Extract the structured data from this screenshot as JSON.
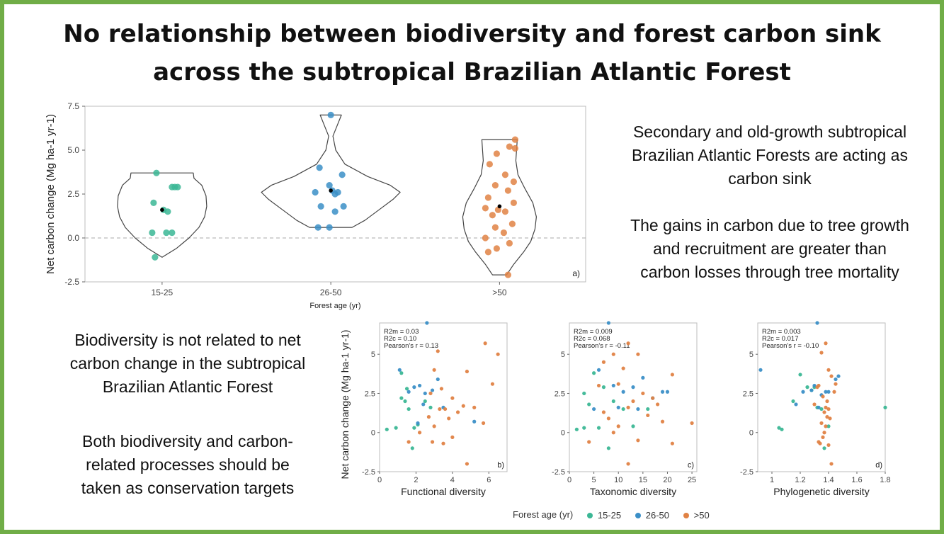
{
  "title": {
    "line1": "No relationship between biodiversity and forest carbon sink",
    "line2": "across the subtropical Brazilian Atlantic Forest"
  },
  "right_text": {
    "p1": [
      "Secondary and old-growth subtropical",
      "Brazilian Atlantic Forests are acting as",
      "carbon sink"
    ],
    "p2": [
      "The gains in carbon due to tree growth",
      "and recruitment are greater than",
      "carbon losses through tree mortality"
    ]
  },
  "left_text": {
    "p1": [
      "Biodiversity is not related to net",
      "carbon change in the subtropical",
      "Brazilian Atlantic Forest"
    ],
    "p2": [
      "Both biodiversity and carbon-",
      "related processes should be",
      "taken as conservation targets"
    ]
  },
  "colors": {
    "15-25": "#3bb795",
    "26-50": "#3b8fc7",
    ">50": "#e08244",
    "frame": "#70ad47"
  },
  "legend": {
    "title": "Forest age (yr)",
    "items": [
      "15-25",
      "26-50",
      ">50"
    ]
  },
  "chart_data": [
    {
      "type": "violin",
      "panel": "a)",
      "xlabel": "Forest age (yr)",
      "ylabel": "Net carbon change (Mg ha-1 yr-1)",
      "ylim": [
        -2.5,
        7.5
      ],
      "yticks": [
        "-2.5",
        "0.0",
        "2.5",
        "5.0",
        "7.5"
      ],
      "categories": [
        "15-25",
        "26-50",
        ">50"
      ],
      "reference_line": 0,
      "groups": [
        {
          "name": "15-25",
          "mean": 1.6,
          "range": [
            -1.1,
            3.7
          ],
          "points": [
            3.7,
            2.9,
            2.9,
            2.9,
            2.0,
            1.6,
            1.5,
            0.3,
            0.3,
            0.3,
            -1.1
          ]
        },
        {
          "name": "26-50",
          "mean": 2.7,
          "range": [
            0.6,
            7.0
          ],
          "points": [
            7.0,
            4.0,
            3.6,
            3.0,
            2.6,
            2.6,
            2.7,
            2.5,
            1.8,
            1.8,
            1.5,
            0.6,
            0.6
          ]
        },
        {
          "name": ">50",
          "mean": 1.8,
          "range": [
            -2.1,
            5.6
          ],
          "points": [
            5.6,
            5.2,
            5.1,
            4.8,
            4.2,
            3.6,
            3.2,
            3.0,
            2.7,
            2.3,
            2.0,
            1.7,
            1.6,
            1.5,
            1.3,
            0.8,
            0.6,
            0.3,
            0.0,
            -0.3,
            -0.6,
            -0.8,
            -2.1
          ]
        }
      ]
    },
    {
      "type": "scatter",
      "panel": "b)",
      "xlabel": "Functional diversity",
      "ylabel": "Net carbon change (Mg ha-1 yr-1)",
      "xlim": [
        0,
        7
      ],
      "ylim": [
        -2.5,
        7
      ],
      "xticks": [
        0,
        2,
        4,
        6
      ],
      "yticks": [
        -2.5,
        0,
        2.5,
        5
      ],
      "stats": [
        "R2m = 0.03",
        "R2c = 0.10",
        "Pearson's r = 0.13"
      ],
      "series": [
        {
          "name": "15-25",
          "points": [
            [
              0.4,
              0.2
            ],
            [
              0.9,
              0.3
            ],
            [
              1.2,
              3.8
            ],
            [
              1.5,
              2.8
            ],
            [
              1.4,
              2.0
            ],
            [
              1.6,
              1.5
            ],
            [
              1.9,
              0.3
            ],
            [
              2.5,
              2.0
            ],
            [
              1.8,
              -1.0
            ],
            [
              2.1,
              0.5
            ],
            [
              2.8,
              1.6
            ],
            [
              1.2,
              2.2
            ]
          ]
        },
        {
          "name": "26-50",
          "points": [
            [
              2.6,
              7.0
            ],
            [
              1.1,
              4.0
            ],
            [
              2.2,
              3.0
            ],
            [
              2.9,
              2.7
            ],
            [
              2.5,
              2.5
            ],
            [
              3.2,
              3.4
            ],
            [
              3.5,
              1.6
            ],
            [
              1.6,
              2.6
            ],
            [
              1.9,
              2.9
            ],
            [
              5.2,
              0.7
            ],
            [
              2.1,
              0.6
            ],
            [
              2.4,
              1.8
            ]
          ]
        },
        {
          "name": ">50",
          "points": [
            [
              5.8,
              5.7
            ],
            [
              6.5,
              5.0
            ],
            [
              3.2,
              5.2
            ],
            [
              4.8,
              3.9
            ],
            [
              6.2,
              3.1
            ],
            [
              3.0,
              4.0
            ],
            [
              4.0,
              2.2
            ],
            [
              2.8,
              2.5
            ],
            [
              3.6,
              1.5
            ],
            [
              4.6,
              1.7
            ],
            [
              3.3,
              1.5
            ],
            [
              5.2,
              1.6
            ],
            [
              4.3,
              1.3
            ],
            [
              2.7,
              1.0
            ],
            [
              3.8,
              0.9
            ],
            [
              5.7,
              0.6
            ],
            [
              3.0,
              0.4
            ],
            [
              2.9,
              -0.6
            ],
            [
              3.5,
              -0.7
            ],
            [
              4.0,
              -0.3
            ],
            [
              4.8,
              -2.0
            ],
            [
              1.6,
              -0.6
            ],
            [
              3.4,
              2.8
            ],
            [
              2.2,
              0.0
            ]
          ]
        }
      ]
    },
    {
      "type": "scatter",
      "panel": "c)",
      "xlabel": "Taxonomic diversity",
      "ylabel": "",
      "xlim": [
        0,
        26
      ],
      "ylim": [
        -2.5,
        7
      ],
      "xticks": [
        0,
        5,
        10,
        15,
        20,
        25
      ],
      "yticks": [
        -2.5,
        0,
        2.5,
        5
      ],
      "stats": [
        "R2m = 0.009",
        "R2c = 0.068",
        "Pearson's r = -0.11"
      ],
      "series": [
        {
          "name": "15-25",
          "points": [
            [
              1.5,
              0.2
            ],
            [
              3,
              0.3
            ],
            [
              5,
              3.8
            ],
            [
              7,
              2.9
            ],
            [
              9,
              2.0
            ],
            [
              11,
              1.5
            ],
            [
              4,
              1.8
            ],
            [
              8,
              -1.0
            ],
            [
              6,
              0.3
            ],
            [
              13,
              0.4
            ],
            [
              16,
              1.5
            ],
            [
              3,
              2.5
            ]
          ]
        },
        {
          "name": "26-50",
          "points": [
            [
              8,
              7.0
            ],
            [
              6,
              4.0
            ],
            [
              9,
              3.0
            ],
            [
              11,
              2.6
            ],
            [
              13,
              2.9
            ],
            [
              15,
              3.5
            ],
            [
              17,
              2.2
            ],
            [
              19,
              2.6
            ],
            [
              5,
              1.5
            ],
            [
              10,
              1.6
            ],
            [
              14,
              1.5
            ],
            [
              20,
              2.6
            ]
          ]
        },
        {
          "name": ">50",
          "points": [
            [
              12,
              5.7
            ],
            [
              9,
              5.0
            ],
            [
              14,
              5.0
            ],
            [
              7,
              4.5
            ],
            [
              11,
              4.1
            ],
            [
              21,
              3.7
            ],
            [
              6,
              3.0
            ],
            [
              10,
              3.1
            ],
            [
              15,
              2.5
            ],
            [
              13,
              2.0
            ],
            [
              18,
              1.8
            ],
            [
              12,
              1.6
            ],
            [
              16,
              1.1
            ],
            [
              8,
              0.9
            ],
            [
              19,
              0.7
            ],
            [
              25,
              0.6
            ],
            [
              10,
              0.4
            ],
            [
              4,
              -0.6
            ],
            [
              14,
              -0.5
            ],
            [
              21,
              -0.7
            ],
            [
              12,
              -2.0
            ],
            [
              17,
              2.2
            ],
            [
              7,
              1.3
            ],
            [
              9,
              0.0
            ]
          ]
        }
      ]
    },
    {
      "type": "scatter",
      "panel": "d)",
      "xlabel": "Phylogenetic diversity",
      "ylabel": "",
      "xlim": [
        0.9,
        1.8
      ],
      "ylim": [
        -2.5,
        7
      ],
      "xticks": [
        1.0,
        1.2,
        1.4,
        1.6,
        1.8
      ],
      "yticks": [
        -2.5,
        0,
        2.5,
        5
      ],
      "stats": [
        "R2m = 0.003",
        "R2c = 0.017",
        "Pearson's r = -0.10"
      ],
      "series": [
        {
          "name": "15-25",
          "points": [
            [
              1.05,
              0.3
            ],
            [
              1.07,
              0.2
            ],
            [
              1.15,
              2.0
            ],
            [
              1.2,
              3.7
            ],
            [
              1.25,
              2.9
            ],
            [
              1.3,
              2.9
            ],
            [
              1.32,
              1.6
            ],
            [
              1.35,
              1.5
            ],
            [
              1.37,
              -1.0
            ],
            [
              1.4,
              0.4
            ],
            [
              1.8,
              1.6
            ],
            [
              1.28,
              2.7
            ]
          ]
        },
        {
          "name": "26-50",
          "points": [
            [
              1.32,
              7.0
            ],
            [
              0.92,
              4.0
            ],
            [
              1.17,
              1.8
            ],
            [
              1.22,
              2.6
            ],
            [
              1.28,
              2.7
            ],
            [
              1.3,
              3.0
            ],
            [
              1.35,
              2.4
            ],
            [
              1.38,
              2.6
            ],
            [
              1.4,
              2.6
            ],
            [
              1.45,
              3.4
            ],
            [
              1.33,
              1.6
            ],
            [
              1.47,
              3.6
            ]
          ]
        },
        {
          "name": ">50",
          "points": [
            [
              1.38,
              5.7
            ],
            [
              1.35,
              5.1
            ],
            [
              1.4,
              4.0
            ],
            [
              1.45,
              3.1
            ],
            [
              1.42,
              3.6
            ],
            [
              1.33,
              3.0
            ],
            [
              1.36,
              2.3
            ],
            [
              1.38,
              1.6
            ],
            [
              1.4,
              1.5
            ],
            [
              1.37,
              1.3
            ],
            [
              1.39,
              1.0
            ],
            [
              1.41,
              0.9
            ],
            [
              1.35,
              0.6
            ],
            [
              1.38,
              0.4
            ],
            [
              1.33,
              -0.6
            ],
            [
              1.36,
              -0.3
            ],
            [
              1.4,
              -0.8
            ],
            [
              1.42,
              -2.0
            ],
            [
              1.3,
              1.8
            ],
            [
              1.37,
              0.0
            ],
            [
              1.32,
              2.9
            ],
            [
              1.44,
              2.6
            ],
            [
              1.39,
              2.0
            ],
            [
              1.34,
              -0.7
            ]
          ]
        }
      ]
    }
  ]
}
